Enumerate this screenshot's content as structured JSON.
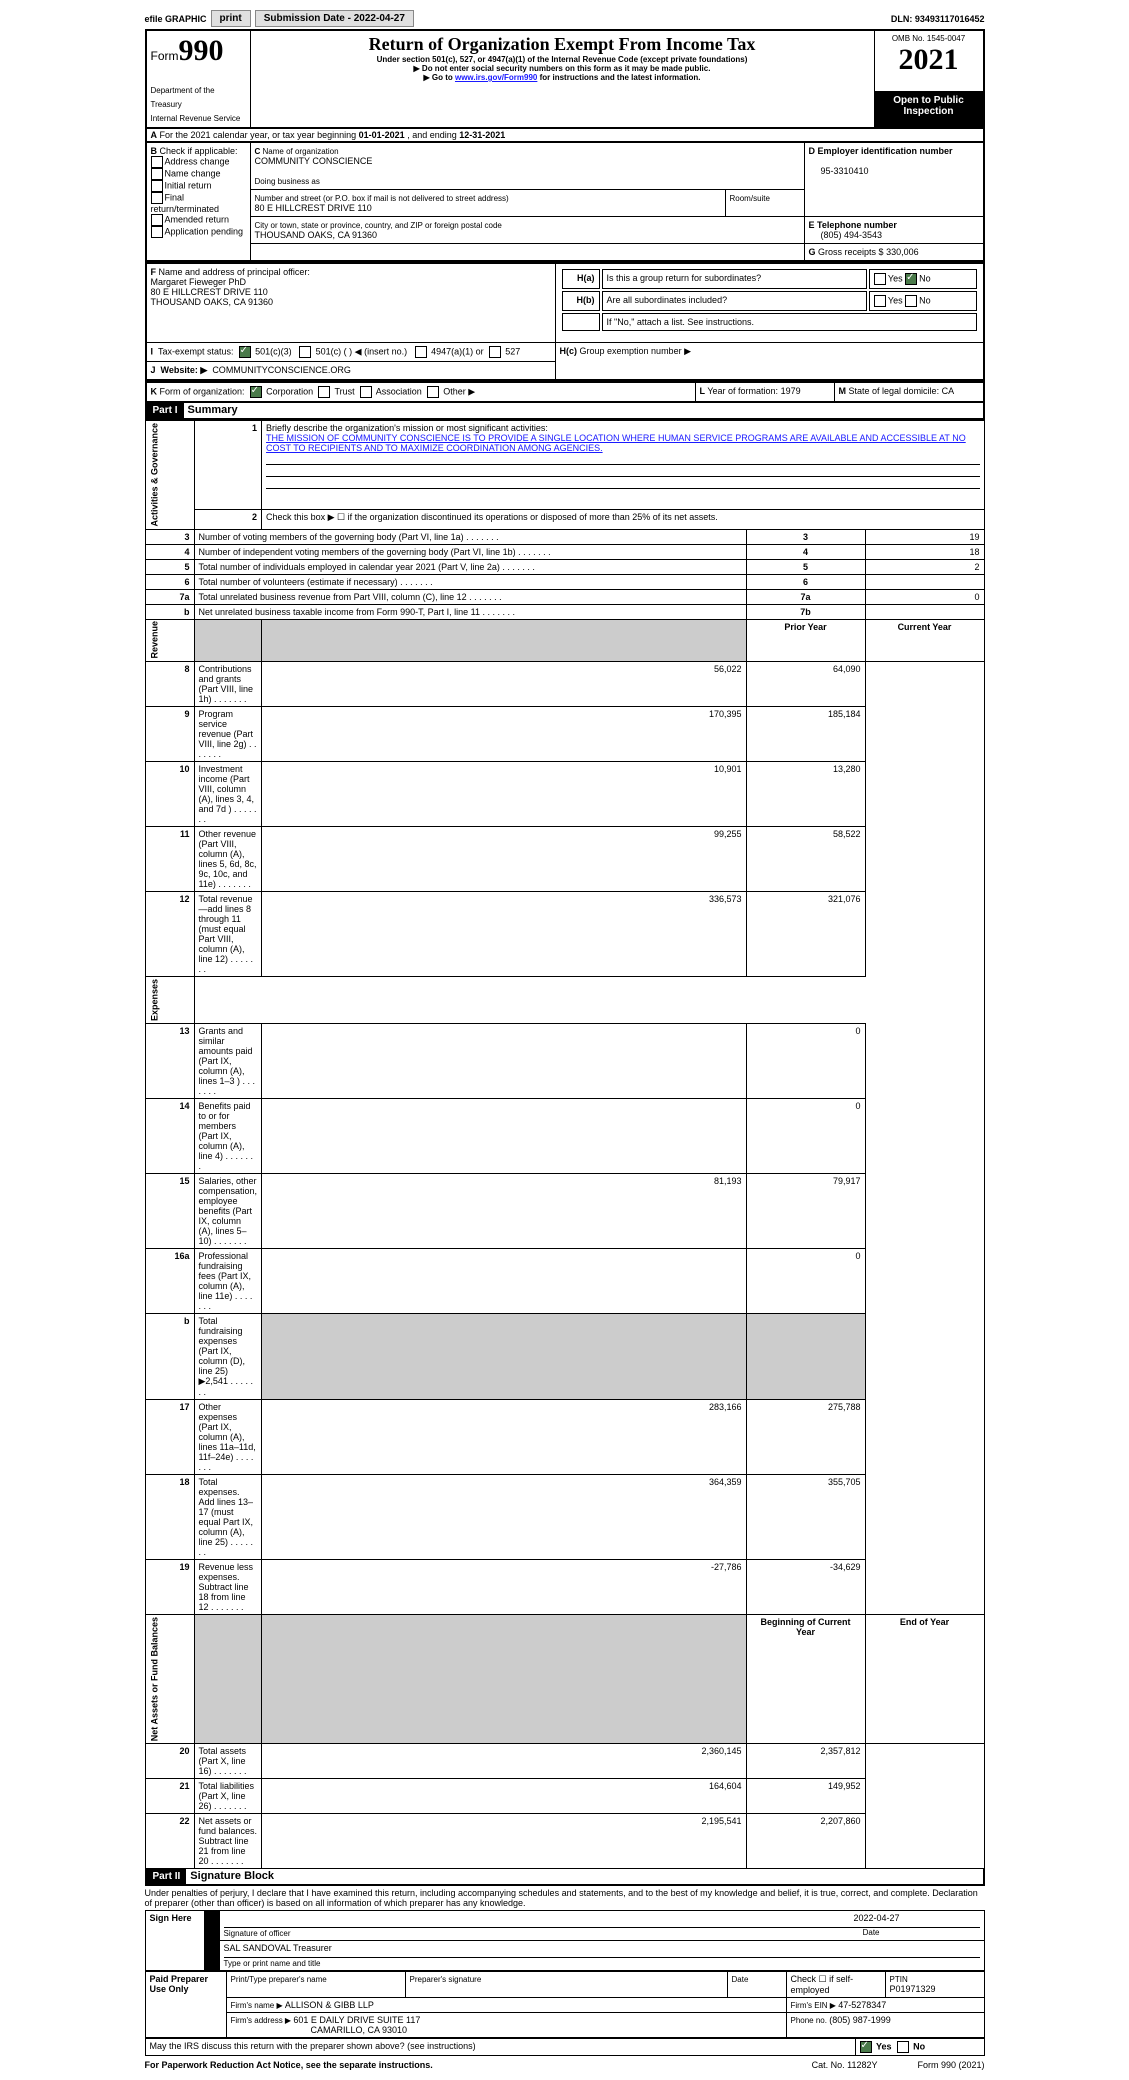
{
  "topbar": {
    "efile": "efile GRAPHIC",
    "print": "print",
    "subdate_lbl": "Submission Date - ",
    "subdate": "2022-04-27",
    "dln_lbl": "DLN: ",
    "dln": "93493117016452"
  },
  "hdr": {
    "form": "Form",
    "f990": "990",
    "title": "Return of Organization Exempt From Income Tax",
    "sub1": "Under section 501(c), 527, or 4947(a)(1) of the Internal Revenue Code (except private foundations)",
    "sub2": "▶ Do not enter social security numbers on this form as it may be made public.",
    "sub3_pre": "▶ Go to ",
    "sub3_link": "www.irs.gov/Form990",
    "sub3_post": " for instructions and the latest information.",
    "dept": "Department of the Treasury\nInternal Revenue Service",
    "omb": "OMB No. 1545-0047",
    "year": "2021",
    "open": "Open to Public Inspection"
  },
  "A": {
    "text": "For the 2021 calendar year, or tax year beginning ",
    "begin": "01-01-2021",
    "mid": " , and ending ",
    "end": "12-31-2021"
  },
  "B": {
    "hdr": "Check if applicable:",
    "addr": "Address change",
    "name": "Name change",
    "init": "Initial return",
    "final": "Final return/terminated",
    "amend": "Amended return",
    "app": "Application pending"
  },
  "C": {
    "name_lbl": "Name of organization",
    "name": "COMMUNITY CONSCIENCE",
    "dba_lbl": "Doing business as",
    "dba": "",
    "street_lbl": "Number and street (or P.O. box if mail is not delivered to street address)",
    "room_lbl": "Room/suite",
    "street": "80 E HILLCREST DRIVE 110",
    "city_lbl": "City or town, state or province, country, and ZIP or foreign postal code",
    "city": "THOUSAND OAKS, CA  91360"
  },
  "D": {
    "lbl": "Employer identification number",
    "val": "95-3310410"
  },
  "E": {
    "lbl": "E Telephone number",
    "val": "(805) 494-3543"
  },
  "G": {
    "lbl": "Gross receipts $ ",
    "val": "330,006"
  },
  "F": {
    "lbl": "Name and address of principal officer:",
    "name": "Margaret Fieweger PhD",
    "l1": "80 E HILLCREST DRIVE 110",
    "l2": "THOUSAND OAKS, CA  91360"
  },
  "H": {
    "a": "Is this a group return for subordinates?",
    "b": "Are all subordinates included?",
    "b2": "If \"No,\" attach a list. See instructions.",
    "c": "Group exemption number ▶",
    "yes": "Yes",
    "no": "No"
  },
  "I": {
    "lbl": "Tax-exempt status:",
    "o1": "501(c)(3)",
    "o2": "501(c) (  ) ◀ (insert no.)",
    "o3": "4947(a)(1) or",
    "o4": "527"
  },
  "J": {
    "lbl": "Website: ▶",
    "val": "COMMUNITYCONSCIENCE.ORG"
  },
  "K": {
    "lbl": "Form of organization:",
    "corp": "Corporation",
    "trust": "Trust",
    "assoc": "Association",
    "other": "Other ▶"
  },
  "L": {
    "lbl": "Year of formation: ",
    "val": "1979"
  },
  "M": {
    "lbl": "State of legal domicile: ",
    "val": "CA"
  },
  "partI": {
    "hdr": "Part I",
    "title": "Summary"
  },
  "sum": {
    "l1": "Briefly describe the organization's mission or most significant activities:",
    "mission": "THE MISSION OF COMMUNITY CONSCIENCE IS TO PROVIDE A SINGLE LOCATION WHERE HUMAN SERVICE PROGRAMS ARE AVAILABLE AND ACCESSIBLE AT NO COST TO RECIPIENTS AND TO MAXIMIZE COORDINATION AMONG AGENCIES.",
    "l2": "Check this box ▶ ☐ if the organization discontinued its operations or disposed of more than 25% of its net assets.",
    "rows": [
      {
        "n": "3",
        "t": "Number of voting members of the governing body (Part VI, line 1a)",
        "box": "3",
        "v": "19"
      },
      {
        "n": "4",
        "t": "Number of independent voting members of the governing body (Part VI, line 1b)",
        "box": "4",
        "v": "18"
      },
      {
        "n": "5",
        "t": "Total number of individuals employed in calendar year 2021 (Part V, line 2a)",
        "box": "5",
        "v": "2"
      },
      {
        "n": "6",
        "t": "Total number of volunteers (estimate if necessary)",
        "box": "6",
        "v": ""
      },
      {
        "n": "7a",
        "t": "Total unrelated business revenue from Part VIII, column (C), line 12",
        "box": "7a",
        "v": "0"
      },
      {
        "n": "b",
        "t": "Net unrelated business taxable income from Form 990-T, Part I, line 11",
        "box": "7b",
        "v": ""
      }
    ],
    "py": "Prior Year",
    "cy": "Current Year",
    "rev": [
      {
        "n": "8",
        "t": "Contributions and grants (Part VIII, line 1h)",
        "p": "56,022",
        "c": "64,090"
      },
      {
        "n": "9",
        "t": "Program service revenue (Part VIII, line 2g)",
        "p": "170,395",
        "c": "185,184"
      },
      {
        "n": "10",
        "t": "Investment income (Part VIII, column (A), lines 3, 4, and 7d )",
        "p": "10,901",
        "c": "13,280"
      },
      {
        "n": "11",
        "t": "Other revenue (Part VIII, column (A), lines 5, 6d, 8c, 9c, 10c, and 11e)",
        "p": "99,255",
        "c": "58,522"
      },
      {
        "n": "12",
        "t": "Total revenue—add lines 8 through 11 (must equal Part VIII, column (A), line 12)",
        "p": "336,573",
        "c": "321,076"
      }
    ],
    "exp": [
      {
        "n": "13",
        "t": "Grants and similar amounts paid (Part IX, column (A), lines 1–3 )",
        "p": "",
        "c": "0"
      },
      {
        "n": "14",
        "t": "Benefits paid to or for members (Part IX, column (A), line 4)",
        "p": "",
        "c": "0"
      },
      {
        "n": "15",
        "t": "Salaries, other compensation, employee benefits (Part IX, column (A), lines 5–10)",
        "p": "81,193",
        "c": "79,917"
      },
      {
        "n": "16a",
        "t": "Professional fundraising fees (Part IX, column (A), line 11e)",
        "p": "",
        "c": "0"
      },
      {
        "n": "b",
        "t": "Total fundraising expenses (Part IX, column (D), line 25) ▶2,541",
        "p": "GREY",
        "c": "GREY"
      },
      {
        "n": "17",
        "t": "Other expenses (Part IX, column (A), lines 11a–11d, 11f–24e)",
        "p": "283,166",
        "c": "275,788"
      },
      {
        "n": "18",
        "t": "Total expenses. Add lines 13–17 (must equal Part IX, column (A), line 25)",
        "p": "364,359",
        "c": "355,705"
      },
      {
        "n": "19",
        "t": "Revenue less expenses. Subtract line 18 from line 12",
        "p": "-27,786",
        "c": "-34,629"
      }
    ],
    "boy": "Beginning of Current Year",
    "eoy": "End of Year",
    "net": [
      {
        "n": "20",
        "t": "Total assets (Part X, line 16)",
        "p": "2,360,145",
        "c": "2,357,812"
      },
      {
        "n": "21",
        "t": "Total liabilities (Part X, line 26)",
        "p": "164,604",
        "c": "149,952"
      },
      {
        "n": "22",
        "t": "Net assets or fund balances. Subtract line 21 from line 20",
        "p": "2,195,541",
        "c": "2,207,860"
      }
    ]
  },
  "tabs": {
    "act": "Activities & Governance",
    "rev": "Revenue",
    "exp": "Expenses",
    "net": "Net Assets or Fund Balances"
  },
  "partII": {
    "hdr": "Part II",
    "title": "Signature Block",
    "decl": "Under penalties of perjury, I declare that I have examined this return, including accompanying schedules and statements, and to the best of my knowledge and belief, it is true, correct, and complete. Declaration of preparer (other than officer) is based on all information of which preparer has any knowledge."
  },
  "sign": {
    "here": "Sign Here",
    "sig_lbl": "Signature of officer",
    "date_lbl": "Date",
    "date": "2022-04-27",
    "name": "SAL SANDOVAL Treasurer",
    "name_lbl": "Type or print name and title"
  },
  "prep": {
    "hdr": "Paid Preparer Use Only",
    "pname_lbl": "Print/Type preparer's name",
    "psig_lbl": "Preparer's signature",
    "pdate_lbl": "Date",
    "self": "Check ☐ if self-employed",
    "ptin_lbl": "PTIN",
    "ptin": "P01971329",
    "firm_lbl": "Firm's name   ▶ ",
    "firm": "ALLISON & GIBB LLP",
    "ein_lbl": "Firm's EIN ▶ ",
    "ein": "47-5278347",
    "addr_lbl": "Firm's address ▶ ",
    "addr1": "601 E DAILY DRIVE SUITE 117",
    "addr2": "CAMARILLO, CA  93010",
    "phone_lbl": "Phone no. ",
    "phone": "(805) 987-1999"
  },
  "discuss": "May the IRS discuss this return with the preparer shown above? (see instructions)",
  "footer": {
    "l": "For Paperwork Reduction Act Notice, see the separate instructions.",
    "c": "Cat. No. 11282Y",
    "r": "Form 990 (2021)"
  }
}
